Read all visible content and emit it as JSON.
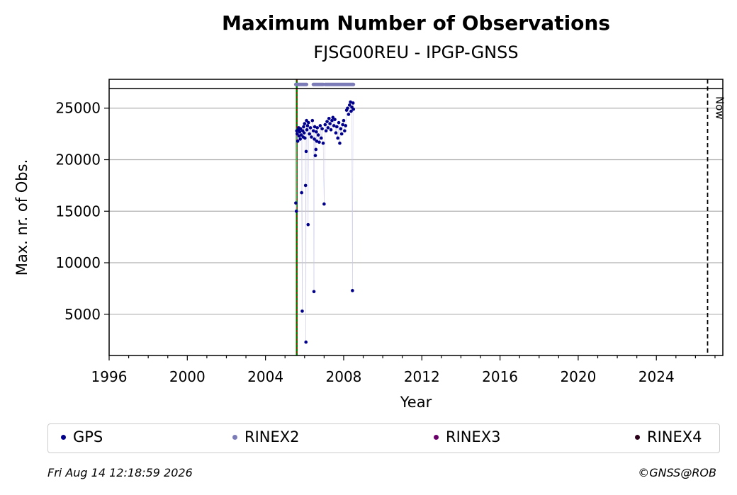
{
  "chart_data": {
    "type": "scatter",
    "title": "Maximum Number of Observations",
    "subtitle": "FJSG00REU - IPGP-GNSS",
    "xlabel": "Year",
    "ylabel": "Max. nr. of Obs.",
    "xlim": [
      1996,
      2027.4
    ],
    "ylim": [
      1000,
      27800
    ],
    "x_ticks": [
      1996,
      2000,
      2004,
      2008,
      2012,
      2016,
      2020,
      2024
    ],
    "y_ticks": [
      5000,
      10000,
      15000,
      20000,
      25000
    ],
    "grid": "horizontal",
    "legend_position": "bottom",
    "now_line": {
      "x": 2026.62,
      "label": "Now"
    },
    "start_line": {
      "x": 2005.6
    },
    "rinex_band": {
      "y": 27300,
      "segments": [
        [
          2005.55,
          2006.1
        ],
        [
          2006.45,
          2006.95
        ],
        [
          2007.05,
          2008.5
        ]
      ]
    },
    "series": [
      {
        "name": "GPS",
        "color": "#00008b",
        "points": [
          [
            2005.55,
            15800
          ],
          [
            2005.58,
            15000
          ],
          [
            2005.6,
            22800
          ],
          [
            2005.62,
            22500
          ],
          [
            2005.65,
            21800
          ],
          [
            2005.68,
            22900
          ],
          [
            2005.7,
            23100
          ],
          [
            2005.72,
            22300
          ],
          [
            2005.75,
            22700
          ],
          [
            2005.78,
            22000
          ],
          [
            2005.8,
            23000
          ],
          [
            2005.83,
            22400
          ],
          [
            2005.85,
            16800
          ],
          [
            2005.88,
            5300
          ],
          [
            2005.9,
            22800
          ],
          [
            2005.93,
            22200
          ],
          [
            2005.95,
            23200
          ],
          [
            2005.98,
            22600
          ],
          [
            2006.0,
            23500
          ],
          [
            2006.02,
            22100
          ],
          [
            2006.05,
            17500
          ],
          [
            2006.07,
            2300
          ],
          [
            2006.08,
            20800
          ],
          [
            2006.1,
            23800
          ],
          [
            2006.12,
            22900
          ],
          [
            2006.15,
            23300
          ],
          [
            2006.18,
            13700
          ],
          [
            2006.2,
            23600
          ],
          [
            2006.25,
            22500
          ],
          [
            2006.3,
            23100
          ],
          [
            2006.35,
            22200
          ],
          [
            2006.4,
            23800
          ],
          [
            2006.45,
            22800
          ],
          [
            2006.48,
            7200
          ],
          [
            2006.5,
            22000
          ],
          [
            2006.52,
            23200
          ],
          [
            2006.55,
            20400
          ],
          [
            2006.58,
            21000
          ],
          [
            2006.6,
            22700
          ],
          [
            2006.62,
            21800
          ],
          [
            2006.65,
            23100
          ],
          [
            2006.7,
            22400
          ],
          [
            2006.75,
            21700
          ],
          [
            2006.8,
            23300
          ],
          [
            2006.85,
            22100
          ],
          [
            2006.9,
            23000
          ],
          [
            2006.95,
            21600
          ],
          [
            2007.0,
            15700
          ],
          [
            2007.05,
            23400
          ],
          [
            2007.1,
            22800
          ],
          [
            2007.15,
            23700
          ],
          [
            2007.2,
            23100
          ],
          [
            2007.25,
            24000
          ],
          [
            2007.3,
            23500
          ],
          [
            2007.35,
            22900
          ],
          [
            2007.4,
            23800
          ],
          [
            2007.45,
            24100
          ],
          [
            2007.5,
            23300
          ],
          [
            2007.55,
            23900
          ],
          [
            2007.6,
            22600
          ],
          [
            2007.65,
            23200
          ],
          [
            2007.7,
            22100
          ],
          [
            2007.75,
            23600
          ],
          [
            2007.8,
            21600
          ],
          [
            2007.85,
            23000
          ],
          [
            2007.9,
            22500
          ],
          [
            2007.95,
            23400
          ],
          [
            2008.0,
            23800
          ],
          [
            2008.05,
            22800
          ],
          [
            2008.1,
            23300
          ],
          [
            2008.15,
            24800
          ],
          [
            2008.2,
            25000
          ],
          [
            2008.25,
            24400
          ],
          [
            2008.3,
            25300
          ],
          [
            2008.35,
            25600
          ],
          [
            2008.38,
            24700
          ],
          [
            2008.42,
            25100
          ],
          [
            2008.45,
            7300
          ],
          [
            2008.48,
            25500
          ],
          [
            2008.5,
            24900
          ]
        ]
      },
      {
        "name": "RINEX2",
        "color": "#7b7bb8",
        "points": []
      },
      {
        "name": "RINEX3",
        "color": "#6b006b",
        "points": []
      },
      {
        "name": "RINEX4",
        "color": "#2b0019",
        "points": []
      }
    ]
  },
  "footer": {
    "timestamp": "Fri Aug 14 12:18:59 2026",
    "credit": "©GNSS@ROB"
  }
}
